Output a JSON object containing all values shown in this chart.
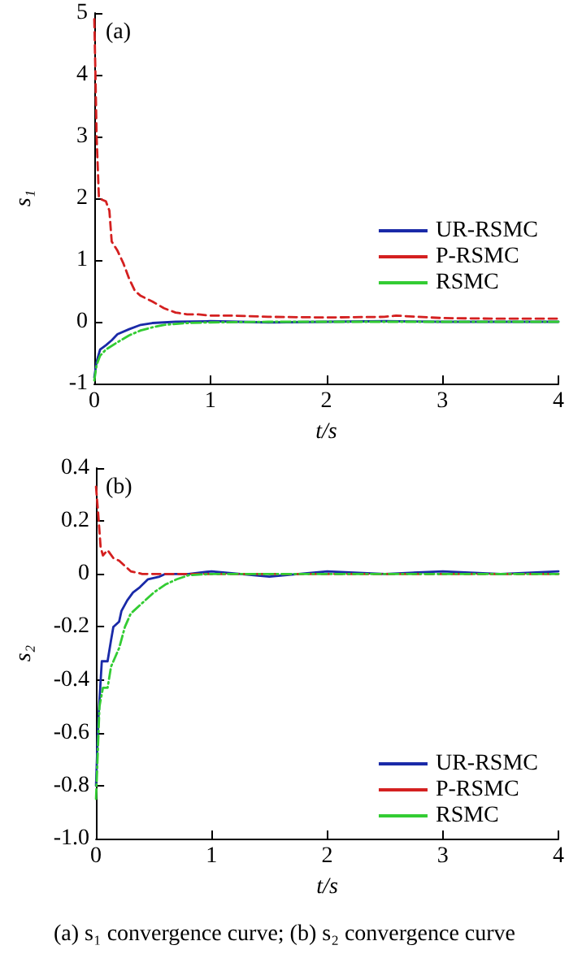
{
  "chart_data": [
    {
      "type": "line",
      "title": "(a)",
      "xlabel": "t/s",
      "ylabel": "s₁",
      "xlim": [
        0,
        4
      ],
      "xticks": [
        0,
        1,
        2,
        3,
        4
      ],
      "ylim": [
        -1,
        5
      ],
      "yticks": [
        -1,
        0,
        1,
        2,
        3,
        4,
        5
      ],
      "grid": false,
      "legend": "right",
      "marker": "none",
      "series": [
        {
          "name": "UR-RSMC",
          "color": "#1a2aa8",
          "line_style": "solid",
          "x": [
            0,
            0.02,
            0.05,
            0.1,
            0.15,
            0.2,
            0.3,
            0.4,
            0.5,
            0.7,
            1,
            1.5,
            2,
            2.5,
            3,
            3.5,
            4
          ],
          "values": [
            -0.9,
            -0.65,
            -0.45,
            -0.38,
            -0.3,
            -0.2,
            -0.12,
            -0.05,
            -0.02,
            0,
            0.01,
            -0.01,
            0,
            0.01,
            0,
            0,
            0
          ]
        },
        {
          "name": "P-RSMC",
          "color": "#d42020",
          "line_style": "dashed",
          "x": [
            0,
            0.01,
            0.02,
            0.03,
            0.04,
            0.1,
            0.13,
            0.15,
            0.2,
            0.25,
            0.3,
            0.35,
            0.4,
            0.5,
            0.6,
            0.7,
            0.8,
            0.9,
            1,
            1.2,
            1.5,
            2,
            2.5,
            2.6,
            3,
            3.5,
            4
          ],
          "values": [
            4.9,
            4,
            3,
            2.5,
            2,
            1.95,
            1.8,
            1.3,
            1.15,
            0.95,
            0.7,
            0.5,
            0.42,
            0.33,
            0.22,
            0.15,
            0.12,
            0.12,
            0.1,
            0.1,
            0.08,
            0.07,
            0.08,
            0.1,
            0.06,
            0.05,
            0.05
          ]
        },
        {
          "name": "RSMC",
          "color": "#33cc33",
          "line_style": "dashdot",
          "x": [
            0,
            0.02,
            0.05,
            0.1,
            0.2,
            0.3,
            0.4,
            0.5,
            0.6,
            0.8,
            1,
            1.5,
            2,
            3,
            4
          ],
          "values": [
            -0.95,
            -0.7,
            -0.55,
            -0.45,
            -0.33,
            -0.22,
            -0.14,
            -0.09,
            -0.05,
            -0.02,
            -0.01,
            0,
            0,
            0,
            0
          ]
        }
      ]
    },
    {
      "type": "line",
      "title": "(b)",
      "xlabel": "t/s",
      "ylabel": "s₂",
      "xlim": [
        0,
        4
      ],
      "xticks": [
        0,
        1,
        2,
        3,
        4
      ],
      "ylim": [
        -1,
        0.4
      ],
      "yticks": [
        {
          "value": -1,
          "label": "-1.0"
        },
        -0.8,
        -0.6,
        -0.4,
        -0.2,
        0,
        0.2,
        0.4
      ],
      "grid": false,
      "legend": "bottom right",
      "marker": "none",
      "annotations": [
        "(a) s₁ convergence curve; (b) s₂ convergence curve"
      ],
      "series": [
        {
          "name": "UR-RSMC",
          "color": "#1a2aa8",
          "line_style": "solid",
          "x": [
            0,
            0.02,
            0.05,
            0.1,
            0.13,
            0.15,
            0.2,
            0.22,
            0.27,
            0.32,
            0.38,
            0.45,
            0.55,
            0.6,
            0.8,
            1,
            1.5,
            2,
            2.5,
            3,
            3.5,
            4
          ],
          "values": [
            -0.8,
            -0.55,
            -0.33,
            -0.33,
            -0.25,
            -0.2,
            -0.18,
            -0.14,
            -0.1,
            -0.07,
            -0.05,
            -0.02,
            -0.01,
            0,
            0,
            0.01,
            -0.01,
            0.01,
            0,
            0.01,
            0,
            0.01
          ]
        },
        {
          "name": "P-RSMC",
          "color": "#d42020",
          "line_style": "dashed",
          "x": [
            0,
            0.02,
            0.04,
            0.06,
            0.1,
            0.15,
            0.2,
            0.25,
            0.3,
            0.35,
            0.4,
            0.6,
            0.8,
            1,
            2,
            3,
            4
          ],
          "values": [
            0.33,
            0.22,
            0.1,
            0.07,
            0.09,
            0.06,
            0.05,
            0.03,
            0.01,
            0.005,
            0,
            0,
            0,
            0,
            0,
            0,
            0
          ]
        },
        {
          "name": "RSMC",
          "color": "#33cc33",
          "line_style": "dashdot",
          "x": [
            0,
            0.03,
            0.06,
            0.1,
            0.13,
            0.2,
            0.25,
            0.3,
            0.4,
            0.5,
            0.6,
            0.7,
            0.8,
            1,
            2,
            3,
            4
          ],
          "values": [
            -0.85,
            -0.5,
            -0.43,
            -0.43,
            -0.35,
            -0.28,
            -0.2,
            -0.15,
            -0.11,
            -0.07,
            -0.04,
            -0.02,
            -0.005,
            0,
            0,
            0,
            0
          ]
        }
      ]
    }
  ]
}
